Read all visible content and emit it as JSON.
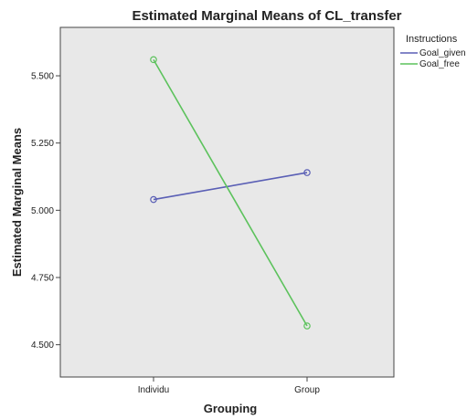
{
  "chart_data": {
    "type": "line",
    "title": "Estimated Marginal Means of CL_transfer",
    "xlabel": "Grouping",
    "ylabel": "Estimated Marginal Means",
    "categories": [
      "Individu",
      "Group"
    ],
    "ylim": [
      4.38,
      5.68
    ],
    "yticks": [
      4.5,
      4.75,
      5.0,
      5.25,
      5.5
    ],
    "ytick_labels": [
      "4.500",
      "4.750",
      "5.000",
      "5.250",
      "5.500"
    ],
    "grid": false,
    "legend": {
      "title": "Instructions",
      "position": "right"
    },
    "series": [
      {
        "name": "Goal_given",
        "values": [
          5.04,
          5.14
        ],
        "color": "#5a5fb5"
      },
      {
        "name": "Goal_free",
        "values": [
          5.56,
          4.57
        ],
        "color": "#5cc25c"
      }
    ],
    "plot_background": "#e8e8e8"
  }
}
